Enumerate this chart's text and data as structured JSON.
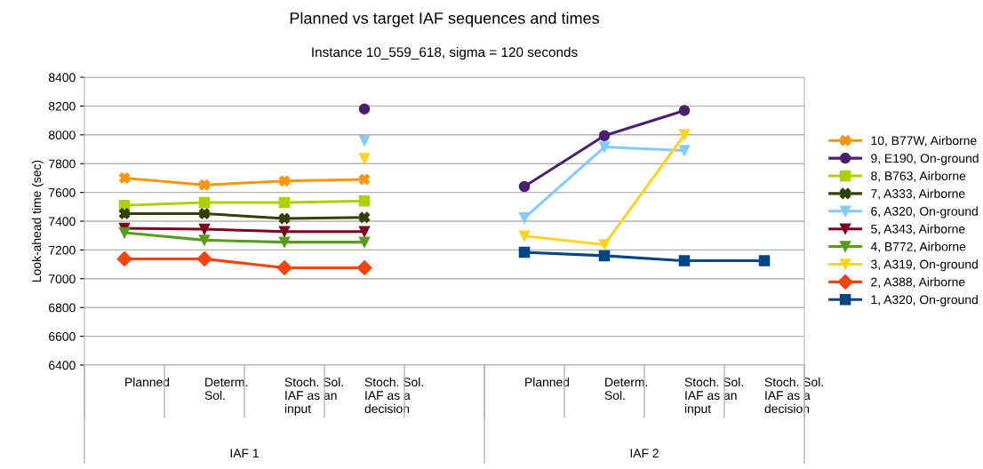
{
  "chart_data": {
    "type": "line",
    "title": "Planned vs target IAF sequences and times",
    "subtitle": "Instance 10_559_618, sigma = 120 seconds",
    "ylabel": "Look-ahead time (sec)",
    "categories": [
      "Planned",
      "Determ.\nSol.",
      "Stoch. Sol.\nIAF as an\ninput",
      "Stoch. Sol.\nIAF as a\ndecision",
      null,
      "Planned",
      "Determ.\nSol.",
      "Stoch. Sol.\nIAF as an\ninput",
      "Stoch. Sol.\nIAF as a\ndecision"
    ],
    "annotations": [
      "IAF 1",
      "IAF 2"
    ],
    "ylim": [
      6400,
      8400
    ],
    "yticks": [
      6400,
      6600,
      6800,
      7000,
      7200,
      7400,
      7600,
      7800,
      8000,
      8200,
      8400
    ],
    "grid": "y",
    "legend": "right",
    "series": [
      {
        "name": "10, B77W, Airborne",
        "color": "#ff950e",
        "marker": "cross",
        "values": [
          7700,
          7652,
          7679,
          7690,
          null,
          null,
          null,
          null,
          null
        ]
      },
      {
        "name": "9, E190, On-ground",
        "color": "#4b1f6f",
        "marker": "circle",
        "values": [
          null,
          null,
          null,
          8180,
          null,
          7641,
          7994,
          8169,
          null
        ]
      },
      {
        "name": "8, B763, Airborne",
        "color": "#aecf00",
        "marker": "square",
        "values": [
          7510,
          7530,
          7530,
          7540,
          null,
          null,
          null,
          null,
          null
        ]
      },
      {
        "name": "7, A333, Airborne",
        "color": "#314004",
        "marker": "cross",
        "values": [
          7453,
          7453,
          7418,
          7426,
          null,
          null,
          null,
          null,
          null
        ]
      },
      {
        "name": "6, A320, On-ground",
        "color": "#83caff",
        "marker": "triangle",
        "values": [
          null,
          null,
          null,
          7960,
          null,
          7423,
          7915,
          7891,
          null
        ]
      },
      {
        "name": "5, A343, Airborne",
        "color": "#7e0021",
        "marker": "triangle",
        "values": [
          7350,
          7344,
          7328,
          7328,
          null,
          null,
          null,
          null,
          null
        ]
      },
      {
        "name": "4, B772, Airborne",
        "color": "#579d1c",
        "marker": "triangle",
        "values": [
          7320,
          7268,
          7254,
          7254,
          null,
          null,
          null,
          null,
          null
        ]
      },
      {
        "name": "3, A319, On-ground",
        "color": "#ffd320",
        "marker": "triangle",
        "values": [
          null,
          null,
          null,
          7835,
          null,
          7297,
          7237,
          8000,
          null
        ]
      },
      {
        "name": "2, A388, Airborne",
        "color": "#ff420e",
        "marker": "diamond",
        "values": [
          7138,
          7138,
          7076,
          7076,
          null,
          null,
          null,
          null,
          null
        ]
      },
      {
        "name": "1, A320, On-ground",
        "color": "#004586",
        "marker": "square",
        "values": [
          null,
          null,
          null,
          null,
          null,
          7184,
          7160,
          7125,
          7125
        ]
      }
    ]
  }
}
